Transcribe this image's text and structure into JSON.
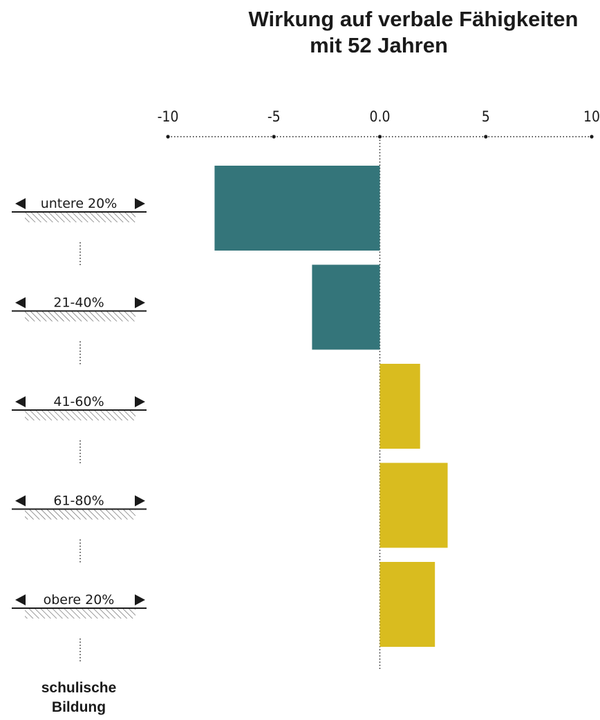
{
  "chart_data": {
    "type": "bar",
    "orientation": "horizontal",
    "title": [
      "Wirkung auf verbale Fähigkeiten",
      "mit 52 Jahren"
    ],
    "categories": [
      "untere 20%",
      "21-40%",
      "41-60%",
      "61-80%",
      "obere 20%"
    ],
    "values": [
      -7.8,
      -3.2,
      1.9,
      3.2,
      2.6
    ],
    "xlim": [
      -10,
      10
    ],
    "xticks": [
      -10,
      -5,
      0,
      5,
      10
    ],
    "xtick_labels": [
      "-10",
      "-5",
      "0.0",
      "5",
      "10"
    ],
    "axis_position": "top",
    "grid": false,
    "category_axis_label": [
      "schulische",
      "Bildung"
    ],
    "colors": {
      "negative": "#34757a",
      "positive": "#d9bc1f",
      "text": "#1a1a1a"
    }
  }
}
